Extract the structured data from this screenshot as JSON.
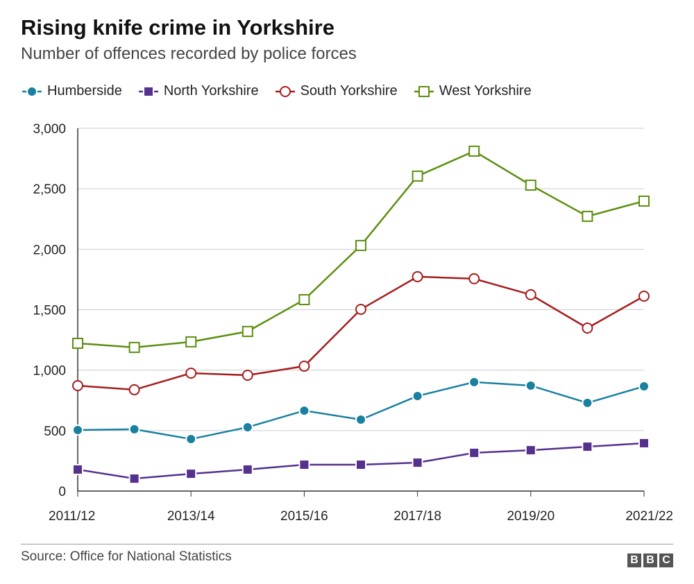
{
  "chart_data": {
    "type": "line",
    "title": "Rising knife crime in Yorkshire",
    "subtitle": "Number of offences recorded by police forces",
    "x": [
      "2011/12",
      "2012/13",
      "2013/14",
      "2014/15",
      "2015/16",
      "2016/17",
      "2017/18",
      "2018/19",
      "2019/20",
      "2020/21",
      "2021/22"
    ],
    "xtick_labels": [
      "2011/12",
      "2013/14",
      "2015/16",
      "2017/18",
      "2019/20",
      "2021/22"
    ],
    "ylim": [
      0,
      3000
    ],
    "yticks": [
      0,
      500,
      1000,
      1500,
      2000,
      2500,
      3000
    ],
    "ytick_labels": [
      "0",
      "500",
      "1,000",
      "1,500",
      "2,000",
      "2,500",
      "3,000"
    ],
    "grid": "horizontal",
    "legend_position": "top",
    "series": [
      {
        "name": "Humberside",
        "color": "#1a80a0",
        "marker": "filled-circle",
        "values": [
          505,
          511,
          430,
          528,
          665,
          591,
          786,
          901,
          872,
          729,
          866
        ]
      },
      {
        "name": "North Yorkshire",
        "color": "#55308d",
        "marker": "filled-square",
        "values": [
          178,
          103,
          143,
          178,
          218,
          218,
          235,
          316,
          338,
          367,
          396
        ]
      },
      {
        "name": "South Yorkshire",
        "color": "#a51c1c",
        "marker": "open-circle",
        "values": [
          872,
          838,
          975,
          958,
          1033,
          1503,
          1773,
          1756,
          1624,
          1348,
          1612
        ]
      },
      {
        "name": "West Yorkshire",
        "color": "#5a8f0e",
        "marker": "open-square",
        "values": [
          1222,
          1188,
          1234,
          1320,
          1583,
          2031,
          2605,
          2811,
          2530,
          2272,
          2398
        ]
      }
    ]
  },
  "footer": {
    "source": "Source: Office for National Statistics",
    "logo": "BBC"
  }
}
